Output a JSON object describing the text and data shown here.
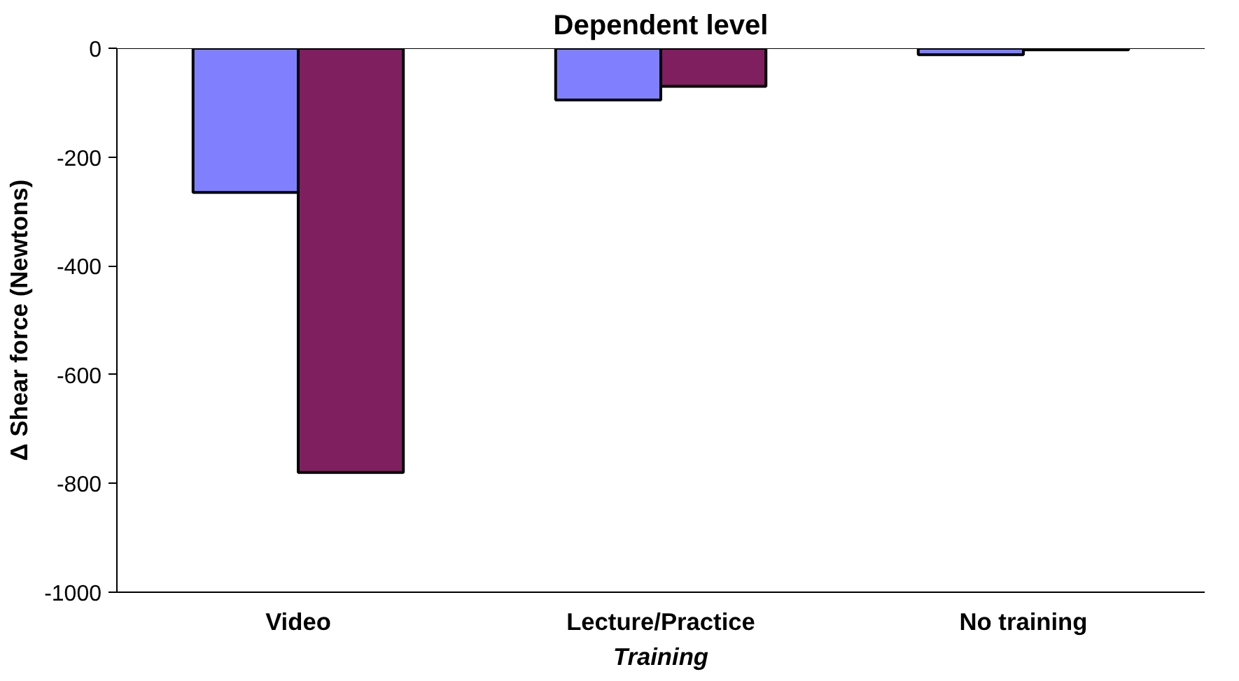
{
  "chart_data": {
    "type": "bar",
    "title": "Dependent level",
    "xlabel": "Training",
    "ylabel": "Δ Shear force (Newtons)",
    "categories": [
      "Video",
      "Lecture/Practice",
      "No training"
    ],
    "series": [
      {
        "color": "#8080ff",
        "values": [
          -265,
          -95,
          -12
        ]
      },
      {
        "color": "#7f1f5f",
        "values": [
          -780,
          -70,
          -3
        ]
      }
    ],
    "ylim": [
      -1000,
      0
    ],
    "yticks": [
      0,
      -200,
      -400,
      -600,
      -800,
      -1000
    ],
    "grid": false
  }
}
